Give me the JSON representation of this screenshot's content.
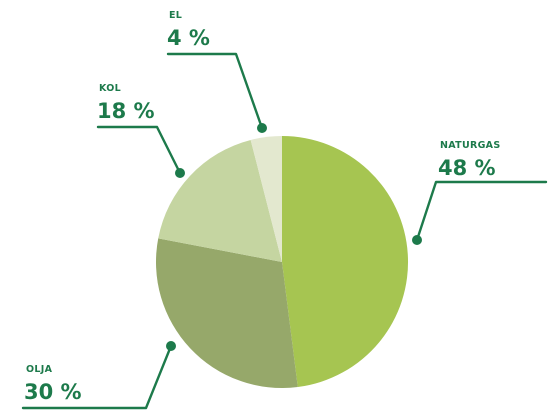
{
  "chart_data": {
    "type": "pie",
    "title": "",
    "slices": [
      {
        "name": "NATURGAS",
        "value": 48,
        "label": "48 %",
        "color": "#a6c551"
      },
      {
        "name": "OLJA",
        "value": 30,
        "label": "30 %",
        "color": "#96a86a"
      },
      {
        "name": "KOL",
        "value": 18,
        "label": "18 %",
        "color": "#c5d5a1"
      },
      {
        "name": "EL",
        "value": 4,
        "label": "4 %",
        "color": "#e3e8cf"
      }
    ],
    "start": "top",
    "direction": "clockwise",
    "legend": "none"
  },
  "colors": {
    "label_text": "#1d7a4b",
    "leader_line": "#1d7a4b",
    "background": "#ffffff"
  }
}
